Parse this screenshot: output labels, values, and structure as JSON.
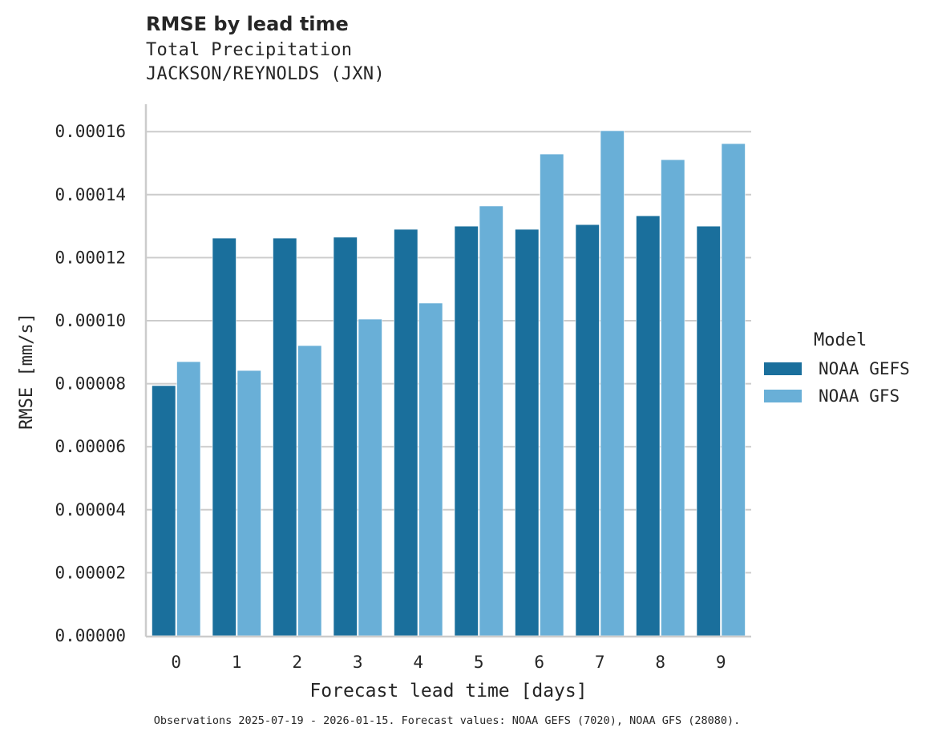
{
  "header": {
    "title": "RMSE by lead time",
    "subtitle": "Total Precipitation",
    "station": "JACKSON/REYNOLDS (JXN)"
  },
  "footer": {
    "note": "Observations 2025-07-19 - 2026-01-15. Forecast values: NOAA GEFS (7020), NOAA GFS (28080)."
  },
  "legend": {
    "title": "Model",
    "items": [
      {
        "label": "NOAA GEFS",
        "color": "#1a6f9c"
      },
      {
        "label": "NOAA GFS",
        "color": "#69afd7"
      }
    ]
  },
  "chart_data": {
    "type": "bar",
    "title": "RMSE by lead time",
    "subtitle": "Total Precipitation — JACKSON/REYNOLDS (JXN)",
    "xlabel": "Forecast lead time [days]",
    "ylabel": "RMSE [mm/s]",
    "categories": [
      "0",
      "1",
      "2",
      "3",
      "4",
      "5",
      "6",
      "7",
      "8",
      "9"
    ],
    "series": [
      {
        "name": "NOAA GEFS",
        "color": "#1a6f9c",
        "values": [
          7.94e-05,
          0.0001262,
          0.0001262,
          0.0001265,
          0.000129,
          0.00013,
          0.000129,
          0.0001305,
          0.0001333,
          0.00013
        ]
      },
      {
        "name": "NOAA GFS",
        "color": "#69afd7",
        "values": [
          8.7e-05,
          8.42e-05,
          9.21e-05,
          0.0001005,
          0.0001056,
          0.0001364,
          0.0001529,
          0.0001603,
          0.0001511,
          0.0001562
        ]
      }
    ],
    "ylim": [
      0,
      0.000169
    ],
    "yticks": [
      "0.00000",
      "0.00002",
      "0.00004",
      "0.00006",
      "0.00008",
      "0.00010",
      "0.00012",
      "0.00014",
      "0.00016"
    ],
    "ytick_values": [
      0,
      2e-05,
      4e-05,
      6e-05,
      8e-05,
      0.0001,
      0.00012,
      0.00014,
      0.00016
    ],
    "grid": "horizontal",
    "legend_position": "right"
  }
}
